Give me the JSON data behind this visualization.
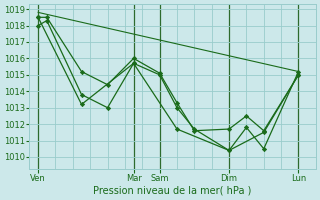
{
  "background_color": "#cce8ea",
  "grid_color": "#99cccc",
  "line_color": "#1a6b1a",
  "xlabel": "Pression niveau de la mer( hPa )",
  "ylim": [
    1009.3,
    1019.3
  ],
  "yticks": [
    1010,
    1011,
    1012,
    1013,
    1014,
    1015,
    1016,
    1017,
    1018,
    1019
  ],
  "xtick_labels": [
    "Ven",
    "Mar",
    "Sam",
    "Dim",
    "Lun"
  ],
  "xtick_positions": [
    0,
    5.5,
    7,
    11,
    15
  ],
  "vline_positions": [
    0,
    5.5,
    7,
    11,
    15
  ],
  "lines": [
    {
      "x": [
        0,
        0.5,
        2.5,
        4.0,
        5.5,
        7.0,
        8.0,
        9.0,
        11.0,
        12.0,
        13.0,
        15.0
      ],
      "y": [
        1018.5,
        1018.5,
        1015.2,
        1014.4,
        1016.0,
        1015.1,
        1013.3,
        1011.6,
        1011.7,
        1012.5,
        1011.6,
        1015.0
      ],
      "marker": true
    },
    {
      "x": [
        0,
        0.5,
        2.5,
        4.0,
        5.5,
        7.0,
        8.0,
        9.0,
        11.0,
        12.0,
        13.0,
        15.0
      ],
      "y": [
        1018.0,
        1018.3,
        1013.8,
        1013.0,
        1015.7,
        1015.0,
        1013.0,
        1011.7,
        1010.4,
        1011.8,
        1010.5,
        1015.2
      ],
      "marker": true
    },
    {
      "x": [
        0,
        2.5,
        5.5,
        8.0,
        11.0,
        13.0,
        15.0
      ],
      "y": [
        1018.5,
        1013.2,
        1015.7,
        1011.7,
        1010.4,
        1011.5,
        1015.0
      ],
      "marker": true
    },
    {
      "x": [
        0,
        15
      ],
      "y": [
        1018.8,
        1015.2
      ],
      "marker": false
    }
  ]
}
